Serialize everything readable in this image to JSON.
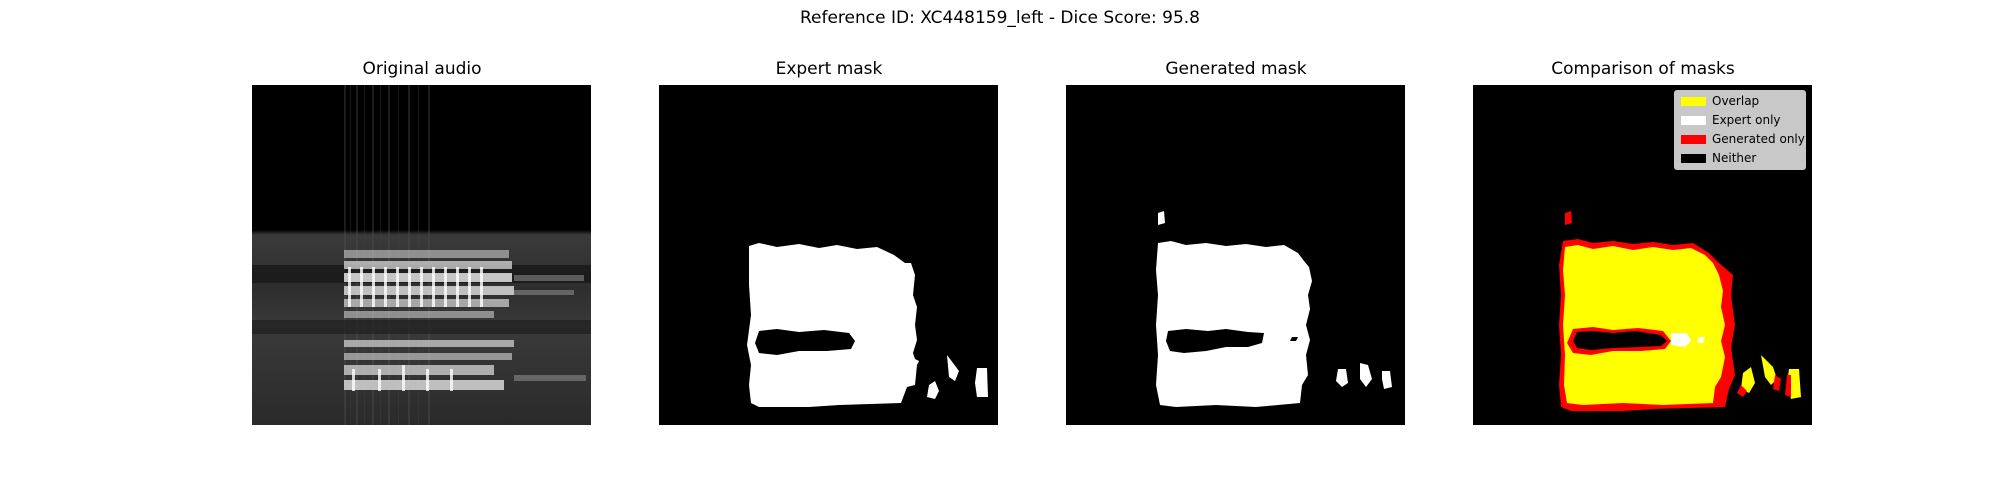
{
  "figure": {
    "suptitle": "Reference ID: XC448159_left - Dice Score: 95.8"
  },
  "panels": [
    {
      "title": "Original audio"
    },
    {
      "title": "Expert mask"
    },
    {
      "title": "Generated mask"
    },
    {
      "title": "Comparison of masks"
    }
  ],
  "legend": {
    "items": [
      {
        "label": "Overlap",
        "color": "#ffff00"
      },
      {
        "label": "Expert only",
        "color": "#ffffff"
      },
      {
        "label": "Generated only",
        "color": "#ff0000"
      },
      {
        "label": "Neither",
        "color": "#000000"
      }
    ]
  },
  "colors": {
    "mask_fill": "#ffffff",
    "background": "#000000",
    "overlap": "#ffff00",
    "generated_only": "#ff0000"
  }
}
